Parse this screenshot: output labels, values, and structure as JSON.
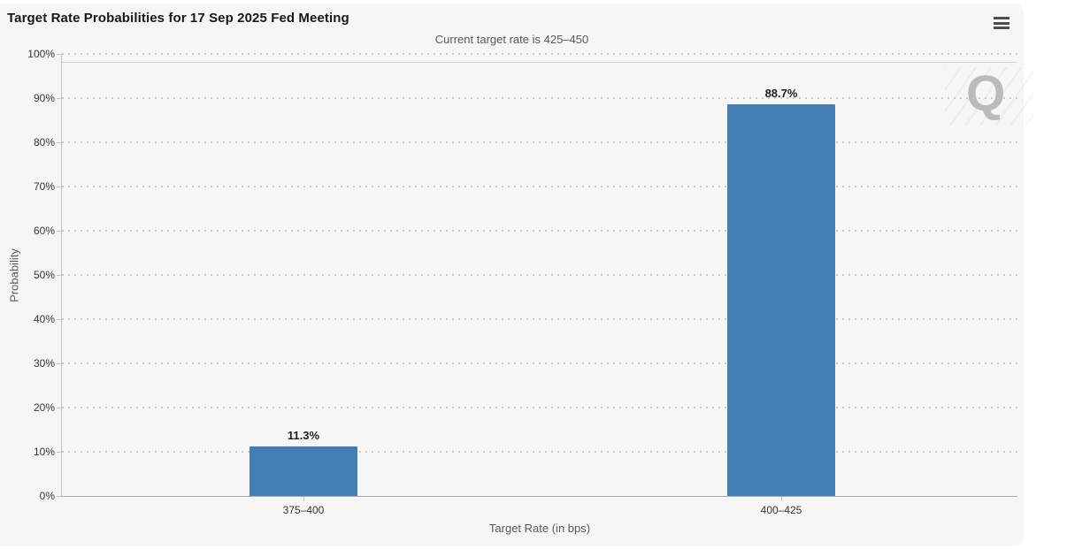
{
  "header": {
    "menu_icon": "hamburger"
  },
  "chart_data": {
    "type": "bar",
    "title": "Target Rate Probabilities for 17 Sep 2025 Fed Meeting",
    "subtitle": "Current target rate is 425–450",
    "categories": [
      "375–400",
      "400–425"
    ],
    "values": [
      11.3,
      88.7
    ],
    "xlabel": "Target Rate (in bps)",
    "ylabel": "Probability",
    "ylim": [
      0,
      100
    ],
    "y_tick_step": 10,
    "y_tick_suffix": "%",
    "data_label_suffix": "%",
    "bar_color": "#447eb4",
    "grid": "dotted-horizontal",
    "legend_position": "none"
  },
  "watermark": {
    "letter": "Q"
  }
}
